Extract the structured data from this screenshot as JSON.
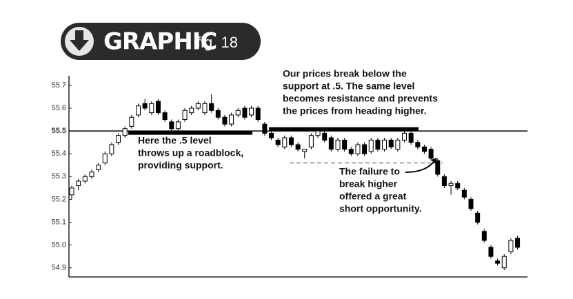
{
  "badge": {
    "title": "GRAPHIC",
    "figure": "fig. 18"
  },
  "chart_data": {
    "type": "candlestick",
    "ylim": [
      54.86,
      55.76
    ],
    "yticks": [
      54.9,
      {
        "value": 55,
        "label": "55.0"
      },
      55.1,
      55.2,
      55.3,
      55.4,
      55.5,
      55.6,
      55.7
    ],
    "level": 55.5,
    "failure_level": 55.36,
    "up_color": "#ffffff",
    "down_color": "#000000",
    "ohlc": [
      [
        55.22,
        55.26,
        55.2,
        55.25
      ],
      [
        55.26,
        55.29,
        55.24,
        55.28
      ],
      [
        55.28,
        55.31,
        55.27,
        55.3
      ],
      [
        55.3,
        55.33,
        55.29,
        55.32
      ],
      [
        55.33,
        55.36,
        55.32,
        55.35
      ],
      [
        55.36,
        55.41,
        55.35,
        55.4
      ],
      [
        55.4,
        55.45,
        55.39,
        55.44
      ],
      [
        55.45,
        55.49,
        55.44,
        55.48
      ],
      [
        55.48,
        55.52,
        55.47,
        55.51
      ],
      [
        55.52,
        55.57,
        55.51,
        55.56
      ],
      [
        55.57,
        55.62,
        55.56,
        55.61
      ],
      [
        55.62,
        55.64,
        55.59,
        55.6
      ],
      [
        55.58,
        55.63,
        55.57,
        55.62
      ],
      [
        55.63,
        55.64,
        55.57,
        55.58
      ],
      [
        55.58,
        55.59,
        55.54,
        55.55
      ],
      [
        55.54,
        55.55,
        55.5,
        55.51
      ],
      [
        55.51,
        55.55,
        55.5,
        55.54
      ],
      [
        55.55,
        55.6,
        55.54,
        55.59
      ],
      [
        55.58,
        55.61,
        55.57,
        55.6
      ],
      [
        55.6,
        55.63,
        55.59,
        55.62
      ],
      [
        55.58,
        55.63,
        55.57,
        55.62
      ],
      [
        55.62,
        55.66,
        55.58,
        55.59
      ],
      [
        55.59,
        55.6,
        55.55,
        55.56
      ],
      [
        55.56,
        55.57,
        55.52,
        55.53
      ],
      [
        55.53,
        55.58,
        55.52,
        55.57
      ],
      [
        55.57,
        55.6,
        55.56,
        55.59
      ],
      [
        55.6,
        55.61,
        55.55,
        55.56
      ],
      [
        55.57,
        55.61,
        55.56,
        55.6
      ],
      [
        55.6,
        55.61,
        55.54,
        55.55
      ],
      [
        55.53,
        55.54,
        55.48,
        55.49
      ],
      [
        55.49,
        55.5,
        55.46,
        55.47
      ],
      [
        55.46,
        55.47,
        55.43,
        55.44
      ],
      [
        55.43,
        55.48,
        55.42,
        55.47
      ],
      [
        55.47,
        55.48,
        55.43,
        55.44
      ],
      [
        55.44,
        55.45,
        55.41,
        55.42
      ],
      [
        55.41,
        55.42,
        55.38,
        55.42
      ],
      [
        55.43,
        55.49,
        55.42,
        55.48
      ],
      [
        55.48,
        55.51,
        55.47,
        55.5
      ],
      [
        55.49,
        55.5,
        55.45,
        55.46
      ],
      [
        55.47,
        55.48,
        55.41,
        55.42
      ],
      [
        55.42,
        55.47,
        55.41,
        55.46
      ],
      [
        55.46,
        55.47,
        55.41,
        55.42
      ],
      [
        55.42,
        55.43,
        55.39,
        55.4
      ],
      [
        55.4,
        55.45,
        55.39,
        55.44
      ],
      [
        55.44,
        55.45,
        55.39,
        55.4
      ],
      [
        55.41,
        55.47,
        55.4,
        55.46
      ],
      [
        55.46,
        55.47,
        55.41,
        55.42
      ],
      [
        55.42,
        55.47,
        55.41,
        55.46
      ],
      [
        55.46,
        55.47,
        55.42,
        55.43
      ],
      [
        55.42,
        55.47,
        55.41,
        55.46
      ],
      [
        55.46,
        55.5,
        55.45,
        55.49
      ],
      [
        55.49,
        55.5,
        55.44,
        55.45
      ],
      [
        55.45,
        55.46,
        55.42,
        55.43
      ],
      [
        55.43,
        55.44,
        55.4,
        55.41
      ],
      [
        55.42,
        55.43,
        55.37,
        55.38
      ],
      [
        55.37,
        55.38,
        55.3,
        55.31
      ],
      [
        55.3,
        55.31,
        55.25,
        55.26
      ],
      [
        55.26,
        55.28,
        55.22,
        55.27
      ],
      [
        55.27,
        55.28,
        55.24,
        55.25
      ],
      [
        55.24,
        55.25,
        55.2,
        55.21
      ],
      [
        55.2,
        55.21,
        55.15,
        55.16
      ],
      [
        55.14,
        55.15,
        55.09,
        55.1
      ],
      [
        55.06,
        55.07,
        55.01,
        55.02
      ],
      [
        54.99,
        55.0,
        54.94,
        54.95
      ],
      [
        54.93,
        54.94,
        54.91,
        54.92
      ],
      [
        54.9,
        54.96,
        54.89,
        54.95
      ],
      [
        54.97,
        55.03,
        54.96,
        55.02
      ],
      [
        55.03,
        55.04,
        54.98,
        54.99
      ]
    ],
    "annotations": [
      {
        "lines": [
          "Here the .5 level",
          "throws up a roadblock,",
          "providing support."
        ]
      },
      {
        "lines": [
          "Our prices break below the",
          "support at .5. The same level",
          "becomes resistance and prevents",
          "the prices from heading higher."
        ]
      },
      {
        "lines": [
          "The failure to",
          "break higher",
          "offered a great",
          "short opportunity."
        ]
      }
    ]
  }
}
